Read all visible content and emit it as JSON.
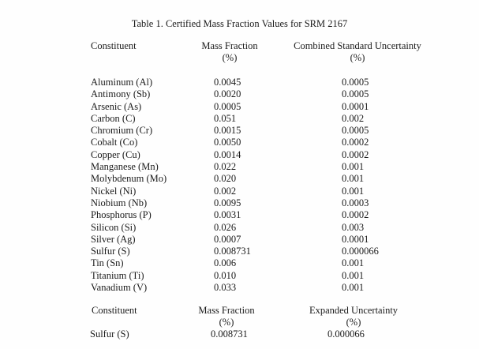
{
  "document": {
    "title": "Table 1. Certified Mass Fraction Values for SRM 2167"
  },
  "main_table": {
    "headers": {
      "constituent": "Constituent",
      "mass_fraction": "Mass Fraction",
      "mass_fraction_unit": "(%)",
      "uncertainty": "Combined Standard Uncertainty",
      "uncertainty_unit": "(%)"
    },
    "rows": [
      {
        "constituent": "Aluminum (Al)",
        "mass_fraction": "0.0045",
        "uncertainty": "0.0005"
      },
      {
        "constituent": "Antimony (Sb)",
        "mass_fraction": "0.0020",
        "uncertainty": "0.0005"
      },
      {
        "constituent": "Arsenic (As)",
        "mass_fraction": "0.0005",
        "uncertainty": "0.0001"
      },
      {
        "constituent": "Carbon (C)",
        "mass_fraction": "0.051",
        "uncertainty": "0.002"
      },
      {
        "constituent": "Chromium (Cr)",
        "mass_fraction": "0.0015",
        "uncertainty": "0.0005"
      },
      {
        "constituent": "Cobalt (Co)",
        "mass_fraction": "0.0050",
        "uncertainty": "0.0002"
      },
      {
        "constituent": "Copper (Cu)",
        "mass_fraction": "0.0014",
        "uncertainty": "0.0002"
      },
      {
        "constituent": "Manganese (Mn)",
        "mass_fraction": "0.022",
        "uncertainty": "0.001"
      },
      {
        "constituent": "Molybdenum (Mo)",
        "mass_fraction": "0.020",
        "uncertainty": "0.001"
      },
      {
        "constituent": "Nickel (Ni)",
        "mass_fraction": "0.002",
        "uncertainty": "0.001"
      },
      {
        "constituent": "Niobium (Nb)",
        "mass_fraction": "0.0095",
        "uncertainty": "0.0003"
      },
      {
        "constituent": "Phosphorus (P)",
        "mass_fraction": "0.0031",
        "uncertainty": "0.0002"
      },
      {
        "constituent": "Silicon (Si)",
        "mass_fraction": "0.026",
        "uncertainty": "0.003"
      },
      {
        "constituent": "Silver (Ag)",
        "mass_fraction": "0.0007",
        "uncertainty": "0.0001"
      },
      {
        "constituent": "Sulfur (S)",
        "mass_fraction": "0.008731",
        "uncertainty": "0.000066"
      },
      {
        "constituent": "Tin (Sn)",
        "mass_fraction": "0.006",
        "uncertainty": "0.001"
      },
      {
        "constituent": "Titanium (Ti)",
        "mass_fraction": "0.010",
        "uncertainty": "0.001"
      },
      {
        "constituent": "Vanadium (V)",
        "mass_fraction": "0.033",
        "uncertainty": "0.001"
      }
    ]
  },
  "expanded_table": {
    "headers": {
      "constituent": "Constituent",
      "mass_fraction": "Mass Fraction",
      "mass_fraction_unit": "(%)",
      "uncertainty": "Expanded Uncertainty",
      "uncertainty_unit": "(%)"
    },
    "rows": [
      {
        "constituent": "Sulfur (S)",
        "mass_fraction": "0.008731",
        "uncertainty": "0.000066"
      }
    ]
  }
}
